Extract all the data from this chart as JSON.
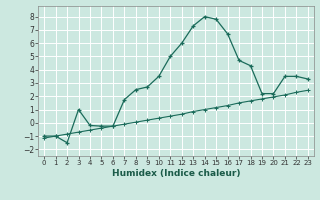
{
  "xlabel": "Humidex (Indice chaleur)",
  "bg_color": "#cce8e0",
  "grid_color": "#ffffff",
  "line_color": "#1a6b5a",
  "xlim": [
    -0.5,
    23.5
  ],
  "ylim": [
    -2.5,
    8.8
  ],
  "yticks": [
    -2,
    -1,
    0,
    1,
    2,
    3,
    4,
    5,
    6,
    7,
    8
  ],
  "xticks": [
    0,
    1,
    2,
    3,
    4,
    5,
    6,
    7,
    8,
    9,
    10,
    11,
    12,
    13,
    14,
    15,
    16,
    17,
    18,
    19,
    20,
    21,
    22,
    23
  ],
  "curve1_x": [
    0,
    1,
    2,
    3,
    4,
    5,
    6,
    7,
    8,
    9,
    10,
    11,
    12,
    13,
    14,
    15,
    16,
    17,
    18,
    19,
    20,
    21,
    22,
    23
  ],
  "curve1_y": [
    -1.0,
    -1.0,
    -1.5,
    1.0,
    -0.2,
    -0.25,
    -0.25,
    1.75,
    2.5,
    2.7,
    3.5,
    5.0,
    6.0,
    7.3,
    8.0,
    7.8,
    6.7,
    4.7,
    4.3,
    2.2,
    2.2,
    3.5,
    3.5,
    3.3
  ],
  "curve2_x": [
    0,
    1,
    2,
    3,
    4,
    5,
    6,
    7,
    8,
    9,
    10,
    11,
    12,
    13,
    14,
    15,
    16,
    17,
    18,
    19,
    20,
    21,
    22,
    23
  ],
  "curve2_y": [
    -1.15,
    -1.0,
    -0.85,
    -0.7,
    -0.55,
    -0.4,
    -0.25,
    -0.1,
    0.05,
    0.2,
    0.35,
    0.5,
    0.65,
    0.85,
    1.0,
    1.15,
    1.3,
    1.5,
    1.65,
    1.8,
    1.95,
    2.1,
    2.3,
    2.45
  ]
}
